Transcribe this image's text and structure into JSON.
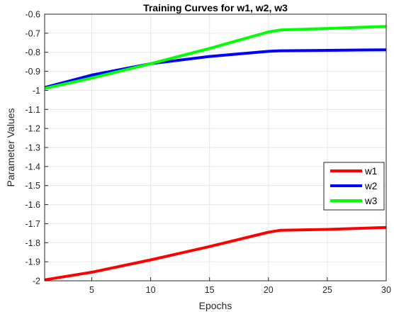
{
  "chart_data": {
    "type": "line",
    "title": "Training Curves for w1, w2, w3",
    "xlabel": "Epochs",
    "ylabel": "Parameter Values",
    "xlim": [
      1,
      30
    ],
    "ylim": [
      -2,
      -0.6
    ],
    "xticks": [
      5,
      10,
      15,
      20,
      25,
      30
    ],
    "yticks": [
      -2,
      -1.9,
      -1.8,
      -1.7,
      -1.6,
      -1.5,
      -1.4,
      -1.3,
      -1.2,
      -1.1,
      -1,
      -0.9,
      -0.8,
      -0.7,
      -0.6
    ],
    "grid": true,
    "legend_position": "right",
    "series": [
      {
        "name": "w1",
        "color": "#ff0000",
        "x": [
          1,
          5,
          10,
          15,
          20,
          21,
          25,
          30
        ],
        "y": [
          -1.995,
          -1.955,
          -1.89,
          -1.82,
          -1.745,
          -1.735,
          -1.73,
          -1.72
        ]
      },
      {
        "name": "w2",
        "color": "#0000ff",
        "x": [
          1,
          5,
          10,
          15,
          20,
          21,
          25,
          30
        ],
        "y": [
          -0.985,
          -0.92,
          -0.86,
          -0.822,
          -0.795,
          -0.792,
          -0.79,
          -0.787
        ]
      },
      {
        "name": "w3",
        "color": "#00ff00",
        "x": [
          1,
          5,
          10,
          15,
          20,
          21,
          25,
          30
        ],
        "y": [
          -0.99,
          -0.935,
          -0.86,
          -0.78,
          -0.693,
          -0.683,
          -0.675,
          -0.664
        ]
      }
    ]
  }
}
